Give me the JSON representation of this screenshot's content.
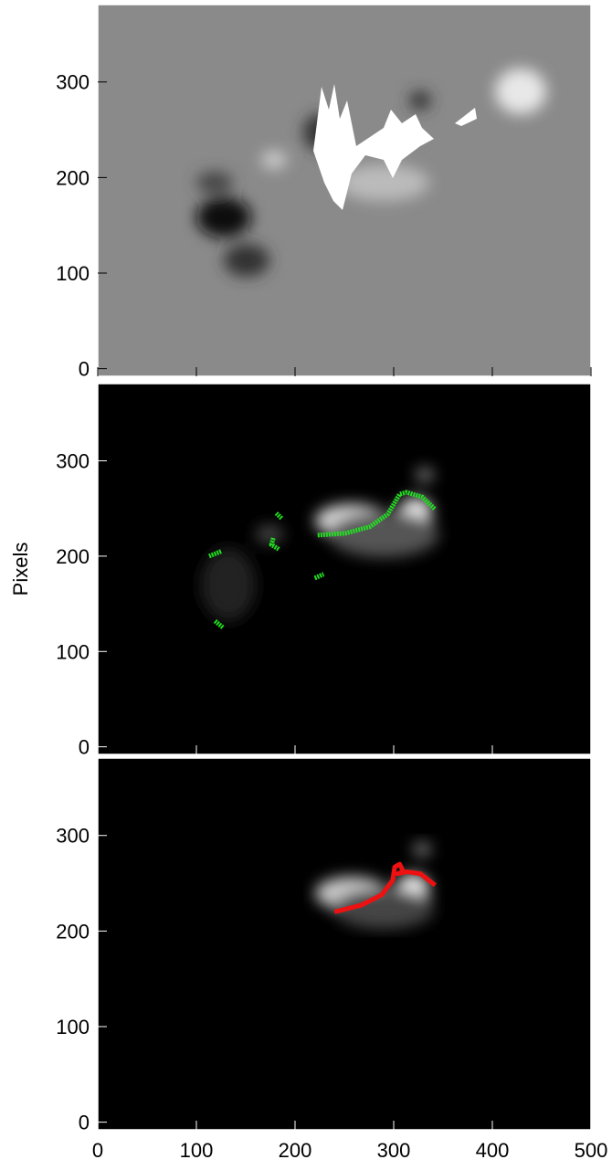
{
  "chart_data": [
    {
      "type": "image",
      "xlim": [
        0,
        500
      ],
      "ylim": [
        -8,
        381
      ],
      "yticks": [
        0,
        100,
        200,
        300
      ]
    },
    {
      "type": "image",
      "ylabel": "Pixels",
      "xlim": [
        0,
        500
      ],
      "ylim": [
        -8,
        381
      ],
      "yticks": [
        0,
        100,
        200,
        300
      ],
      "series": [
        {
          "color": "#22dd22",
          "x": [
            223,
            251,
            276,
            294,
            306,
            313,
            329,
            342,
            null,
            113,
            125,
            null,
            119,
            127,
            null,
            181,
            187,
            null,
            178,
            176,
            184,
            null,
            220,
            229
          ],
          "values": [
            222,
            224,
            231,
            244,
            265,
            267,
            262,
            249,
            null,
            200,
            205,
            null,
            132,
            125,
            null,
            245,
            239,
            null,
            219,
            212,
            207,
            null,
            177,
            181
          ]
        }
      ]
    },
    {
      "type": "image",
      "xlim": [
        0,
        500
      ],
      "ylim": [
        -8,
        381
      ],
      "yticks": [
        0,
        100,
        200,
        300
      ],
      "xticks": [
        0,
        100,
        200,
        300,
        400,
        500
      ],
      "series": [
        {
          "color": "#ee1111",
          "x": [
            240,
            267,
            288,
            299,
            301,
            306,
            310,
            304,
            313,
            327,
            342
          ],
          "values": [
            220,
            227,
            238,
            253,
            267,
            270,
            262,
            260,
            262,
            260,
            248
          ]
        }
      ]
    }
  ]
}
